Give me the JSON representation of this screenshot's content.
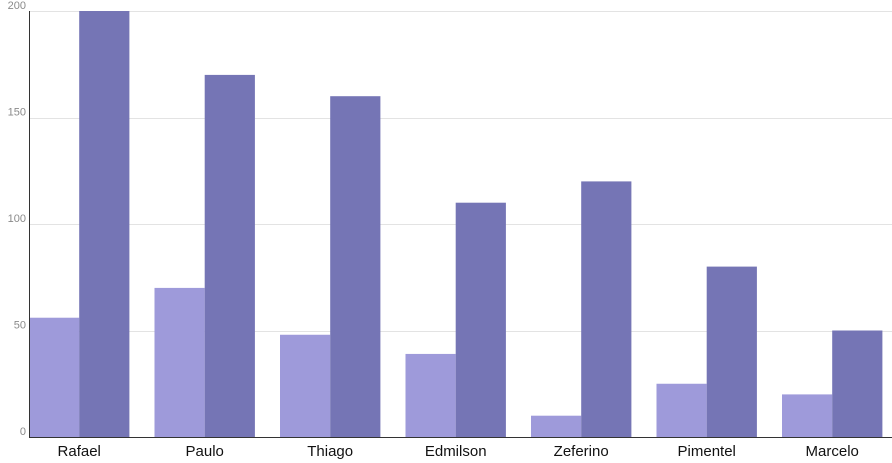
{
  "chart_data": {
    "type": "bar",
    "title": "",
    "xlabel": "",
    "ylabel": "",
    "ylim": [
      0,
      200
    ],
    "yticks": [
      0,
      50,
      100,
      150,
      200
    ],
    "grid": true,
    "legend": "none",
    "categories": [
      "Rafael",
      "Paulo",
      "Thiago",
      "Edmilson",
      "Zeferino",
      "Pimentel",
      "Marcelo"
    ],
    "series": [
      {
        "color": "#9e9ada",
        "values": [
          56,
          70,
          48,
          39,
          10,
          25,
          20
        ]
      },
      {
        "color": "#7575b5",
        "values": [
          200,
          170,
          160,
          110,
          120,
          80,
          50
        ]
      }
    ]
  }
}
